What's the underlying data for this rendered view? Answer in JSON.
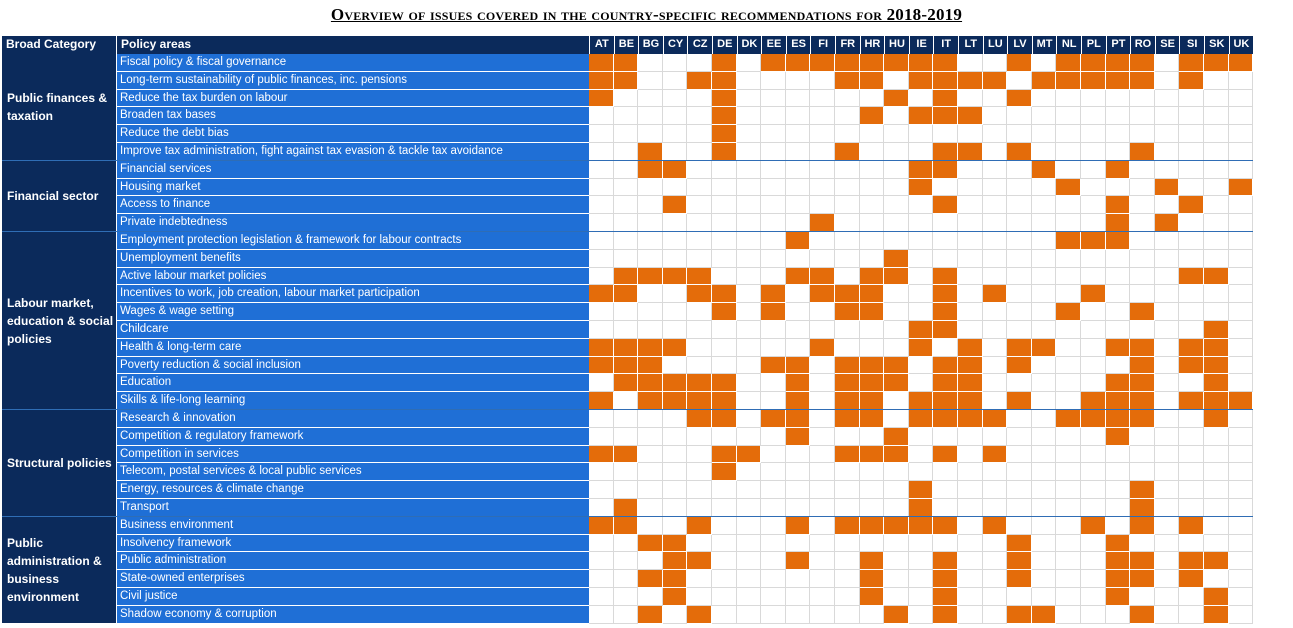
{
  "title": "Overview of issues covered in the country-specific recommendations for 2018-2019",
  "header": {
    "broad_category": "Broad Category",
    "policy_areas": "Policy areas"
  },
  "colors": {
    "header_bg": "#0b2a5b",
    "policy_bg": "#1f6fd6",
    "mark": "#e46c0a"
  },
  "chart_data": {
    "type": "table",
    "title": "Overview of issues covered in the country-specific recommendations for 2018-2019",
    "countries": [
      "AT",
      "BE",
      "BG",
      "CY",
      "CZ",
      "DE",
      "DK",
      "EE",
      "ES",
      "FI",
      "FR",
      "HR",
      "HU",
      "IE",
      "IT",
      "LT",
      "LU",
      "LV",
      "MT",
      "NL",
      "PL",
      "PT",
      "RO",
      "SE",
      "SI",
      "SK",
      "UK"
    ],
    "categories": [
      {
        "name": "Public finances & taxation",
        "rows": [
          {
            "policy": "Fiscal policy & fiscal governance",
            "countries": [
              "AT",
              "BE",
              "DE",
              "EE",
              "ES",
              "FI",
              "FR",
              "HR",
              "HU",
              "IE",
              "IT",
              "LV",
              "NL",
              "PL",
              "PT",
              "RO",
              "SI",
              "SK",
              "UK"
            ]
          },
          {
            "policy": "Long-term sustainability of public finances, inc. pensions",
            "countries": [
              "AT",
              "BE",
              "CZ",
              "DE",
              "FR",
              "HR",
              "IE",
              "IT",
              "LT",
              "LU",
              "MT",
              "NL",
              "PL",
              "PT",
              "RO",
              "SI"
            ]
          },
          {
            "policy": "Reduce the tax burden on labour",
            "countries": [
              "AT",
              "DE",
              "HU",
              "IT",
              "LV"
            ]
          },
          {
            "policy": "Broaden tax bases",
            "countries": [
              "DE",
              "HR",
              "IE",
              "IT",
              "LT"
            ]
          },
          {
            "policy": "Reduce the debt bias",
            "countries": [
              "DE"
            ]
          },
          {
            "policy": "Improve tax administration, fight against tax evasion & tackle tax avoidance",
            "countries": [
              "BG",
              "DE",
              "FR",
              "IT",
              "LT",
              "LV",
              "RO"
            ]
          }
        ]
      },
      {
        "name": "Financial sector",
        "rows": [
          {
            "policy": "Financial services",
            "countries": [
              "BG",
              "CY",
              "IE",
              "IT",
              "MT",
              "PT"
            ]
          },
          {
            "policy": "Housing market",
            "countries": [
              "IE",
              "NL",
              "SE",
              "UK"
            ]
          },
          {
            "policy": "Access to finance",
            "countries": [
              "CY",
              "IT",
              "PT",
              "SI"
            ]
          },
          {
            "policy": "Private indebtedness",
            "countries": [
              "FI",
              "PT",
              "SE"
            ]
          }
        ]
      },
      {
        "name": "Labour market, education & social policies",
        "rows": [
          {
            "policy": "Employment protection legislation & framework for labour contracts",
            "countries": [
              "ES",
              "NL",
              "PL",
              "PT"
            ]
          },
          {
            "policy": "Unemployment benefits",
            "countries": [
              "HU"
            ]
          },
          {
            "policy": "Active labour market policies",
            "countries": [
              "BE",
              "BG",
              "CY",
              "CZ",
              "ES",
              "FI",
              "HR",
              "HU",
              "IT",
              "SI",
              "SK"
            ]
          },
          {
            "policy": "Incentives to work, job creation, labour market participation",
            "countries": [
              "AT",
              "BE",
              "CZ",
              "DE",
              "EE",
              "FI",
              "FR",
              "HR",
              "IT",
              "LU",
              "PL"
            ]
          },
          {
            "policy": "Wages & wage setting",
            "countries": [
              "DE",
              "EE",
              "FR",
              "HR",
              "IT",
              "NL",
              "RO"
            ]
          },
          {
            "policy": "Childcare",
            "countries": [
              "IE",
              "IT",
              "SK"
            ]
          },
          {
            "policy": "Health & long-term care",
            "countries": [
              "AT",
              "BE",
              "BG",
              "CY",
              "FI",
              "IE",
              "LT",
              "LV",
              "MT",
              "PT",
              "RO",
              "SI",
              "SK"
            ]
          },
          {
            "policy": "Poverty reduction & social inclusion",
            "countries": [
              "AT",
              "BE",
              "BG",
              "EE",
              "ES",
              "FR",
              "HR",
              "HU",
              "IT",
              "LT",
              "LV",
              "RO",
              "SI",
              "SK"
            ]
          },
          {
            "policy": "Education",
            "countries": [
              "BE",
              "BG",
              "CY",
              "CZ",
              "DE",
              "ES",
              "FR",
              "HR",
              "HU",
              "IT",
              "LT",
              "PT",
              "RO",
              "SK"
            ]
          },
          {
            "policy": "Skills & life-long learning",
            "countries": [
              "AT",
              "BG",
              "CY",
              "CZ",
              "DE",
              "ES",
              "FR",
              "HR",
              "IE",
              "IT",
              "LT",
              "LV",
              "PL",
              "PT",
              "RO",
              "SI",
              "SK",
              "UK"
            ]
          }
        ]
      },
      {
        "name": "Structural policies",
        "rows": [
          {
            "policy": "Research & innovation",
            "countries": [
              "CZ",
              "DE",
              "EE",
              "ES",
              "FR",
              "HR",
              "IE",
              "IT",
              "LT",
              "LU",
              "NL",
              "PL",
              "PT",
              "RO",
              "SK"
            ]
          },
          {
            "policy": "Competition & regulatory framework",
            "countries": [
              "ES",
              "HU",
              "PT"
            ]
          },
          {
            "policy": "Competition in services",
            "countries": [
              "AT",
              "BE",
              "DE",
              "DK",
              "FR",
              "HR",
              "HU",
              "IT",
              "LU"
            ]
          },
          {
            "policy": "Telecom, postal services & local public services",
            "countries": [
              "DE"
            ]
          },
          {
            "policy": "Energy, resources & climate change",
            "countries": [
              "IE",
              "RO"
            ]
          },
          {
            "policy": "Transport",
            "countries": [
              "BE",
              "IE",
              "RO"
            ]
          }
        ]
      },
      {
        "name": "Public administration & business environment",
        "rows": [
          {
            "policy": "Business environment",
            "countries": [
              "AT",
              "BE",
              "CZ",
              "ES",
              "FR",
              "HR",
              "HU",
              "IE",
              "IT",
              "LU",
              "PL",
              "RO",
              "SI"
            ]
          },
          {
            "policy": "Insolvency framework",
            "countries": [
              "BG",
              "CY",
              "LV",
              "PT"
            ]
          },
          {
            "policy": "Public administration",
            "countries": [
              "CY",
              "CZ",
              "ES",
              "HR",
              "IT",
              "LV",
              "PT",
              "RO",
              "SI",
              "SK"
            ]
          },
          {
            "policy": "State-owned enterprises",
            "countries": [
              "BG",
              "CY",
              "HR",
              "IT",
              "LV",
              "PT",
              "RO",
              "SI"
            ]
          },
          {
            "policy": "Civil justice",
            "countries": [
              "CY",
              "HR",
              "IT",
              "PT",
              "SK"
            ]
          },
          {
            "policy": "Shadow economy & corruption",
            "countries": [
              "BG",
              "CZ",
              "HU",
              "IT",
              "LV",
              "MT",
              "RO",
              "SK"
            ]
          }
        ]
      }
    ]
  }
}
